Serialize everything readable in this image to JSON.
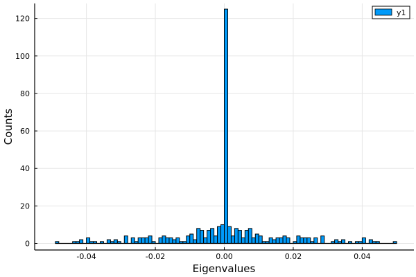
{
  "chart_data": {
    "type": "bar",
    "xlabel": "Eigenvalues",
    "ylabel": "Counts",
    "xlim": [
      -0.055,
      0.055
    ],
    "ylim": [
      -3.5,
      128
    ],
    "xticks": [
      -0.04,
      -0.02,
      0.0,
      0.02,
      0.04
    ],
    "xtick_labels": [
      "-0.04",
      "-0.02",
      "0.00",
      "0.02",
      "0.04"
    ],
    "yticks": [
      0,
      20,
      40,
      60,
      80,
      100,
      120
    ],
    "ytick_labels": [
      "0",
      "20",
      "40",
      "60",
      "80",
      "100",
      "120"
    ],
    "grid": true,
    "legend_position": "top-right",
    "bin_width": 0.001,
    "bin_start": -0.049,
    "series": [
      {
        "name": "y1",
        "color": "#009af9",
        "values": [
          1,
          0,
          0,
          0,
          0,
          1,
          1,
          2,
          0,
          3,
          1,
          1,
          0,
          1,
          0,
          2,
          1,
          2,
          1,
          0,
          4,
          0,
          3,
          1,
          3,
          3,
          3,
          4,
          1,
          0,
          3,
          4,
          3,
          3,
          2,
          3,
          1,
          1,
          4,
          5,
          2,
          8,
          7,
          3,
          7,
          8,
          4,
          9,
          10,
          125,
          9,
          4,
          8,
          7,
          3,
          7,
          8,
          3,
          5,
          4,
          1,
          1,
          3,
          2,
          3,
          3,
          4,
          3,
          0,
          1,
          4,
          3,
          3,
          3,
          1,
          3,
          0,
          4,
          0,
          0,
          1,
          2,
          1,
          2,
          0,
          1,
          0,
          1,
          1,
          3,
          0,
          2,
          1,
          1,
          0,
          0,
          0,
          0,
          1
        ]
      }
    ]
  }
}
